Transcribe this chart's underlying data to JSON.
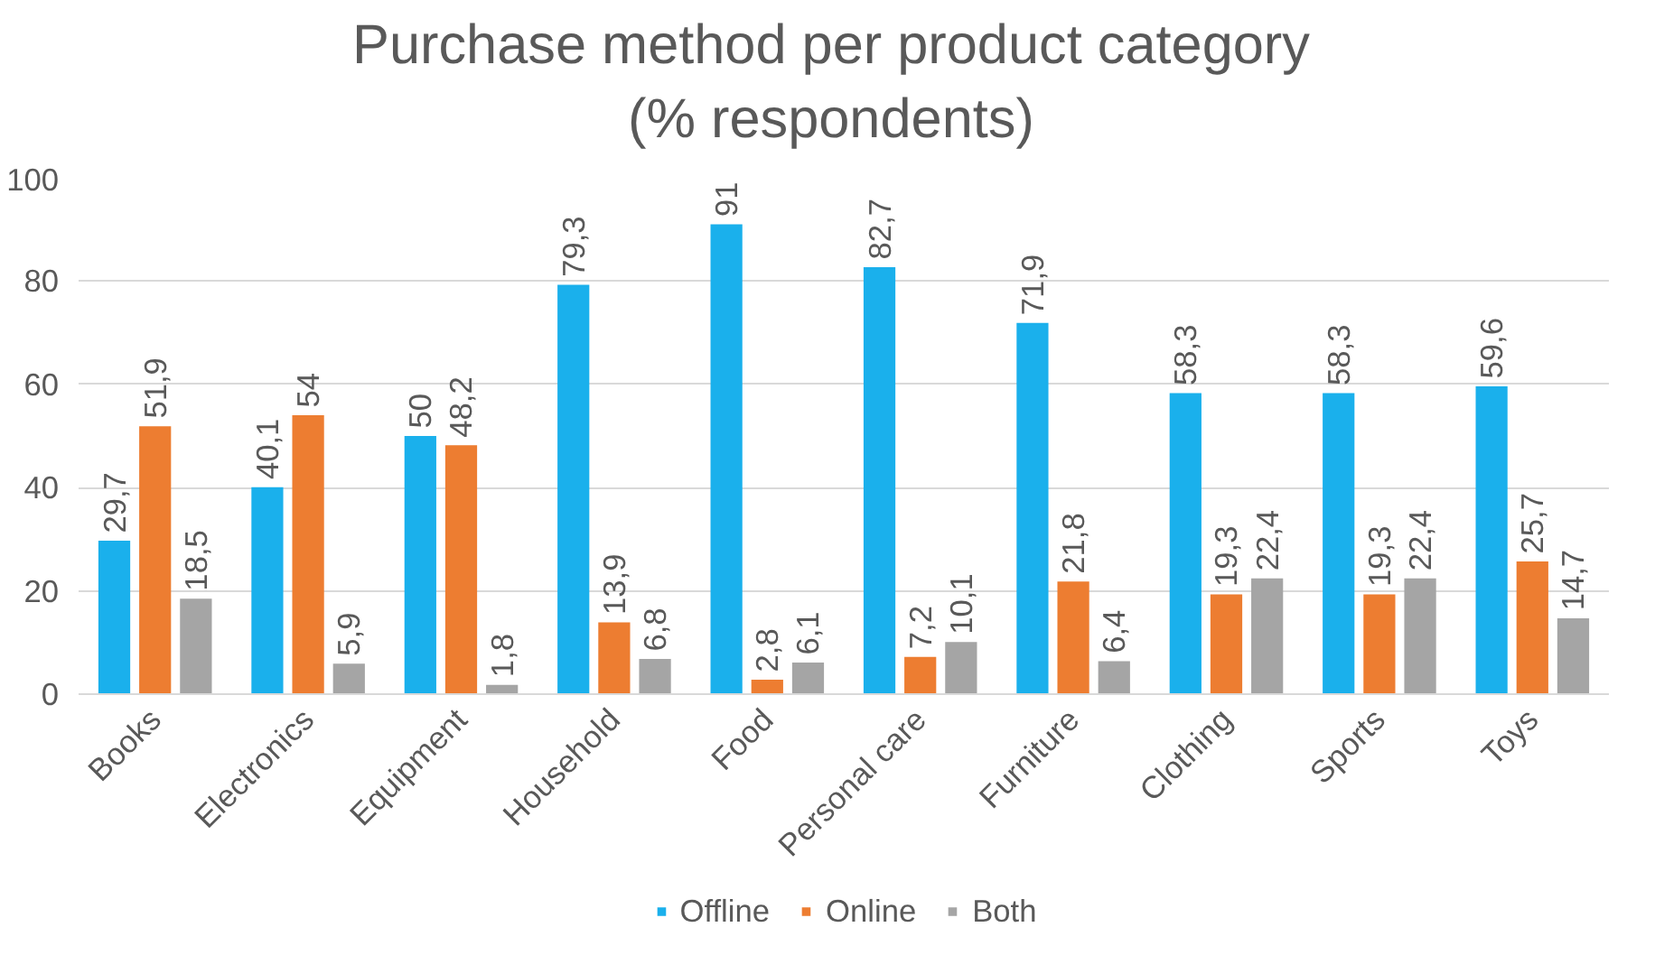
{
  "chart_data": {
    "type": "bar",
    "title": "Purchase method per product category\n(% respondents)",
    "categories": [
      "Books",
      "Electronics",
      "Equipment",
      "Household",
      "Food",
      "Personal care",
      "Furniture",
      "Clothing",
      "Sports",
      "Toys"
    ],
    "series": [
      {
        "name": "Offline",
        "color": "#1ab0ec",
        "values": [
          29.7,
          40.1,
          50,
          79.3,
          91,
          82.7,
          71.9,
          58.3,
          58.3,
          59.6
        ],
        "value_labels": [
          "29,7",
          "40,1",
          "50",
          "79,3",
          "91",
          "82,7",
          "71,9",
          "58,3",
          "58,3",
          "59,6"
        ]
      },
      {
        "name": "Online",
        "color": "#ed7d31",
        "values": [
          51.9,
          54,
          48.2,
          13.9,
          2.8,
          7.2,
          21.8,
          19.3,
          19.3,
          25.7
        ],
        "value_labels": [
          "51,9",
          "54",
          "48,2",
          "13,9",
          "2,8",
          "7,2",
          "21,8",
          "19,3",
          "19,3",
          "25,7"
        ]
      },
      {
        "name": "Both",
        "color": "#a5a5a5",
        "values": [
          18.5,
          5.9,
          1.8,
          6.8,
          6.1,
          10.1,
          6.4,
          22.4,
          22.4,
          14.7
        ],
        "value_labels": [
          "18,5",
          "5,9",
          "1,8",
          "6,8",
          "6,1",
          "10,1",
          "6,4",
          "22,4",
          "22,4",
          "14,7"
        ]
      }
    ],
    "ylim": [
      0,
      100
    ],
    "yticks": [
      0,
      20,
      40,
      60,
      80,
      100
    ],
    "grid": "y",
    "legend": "bottom"
  }
}
